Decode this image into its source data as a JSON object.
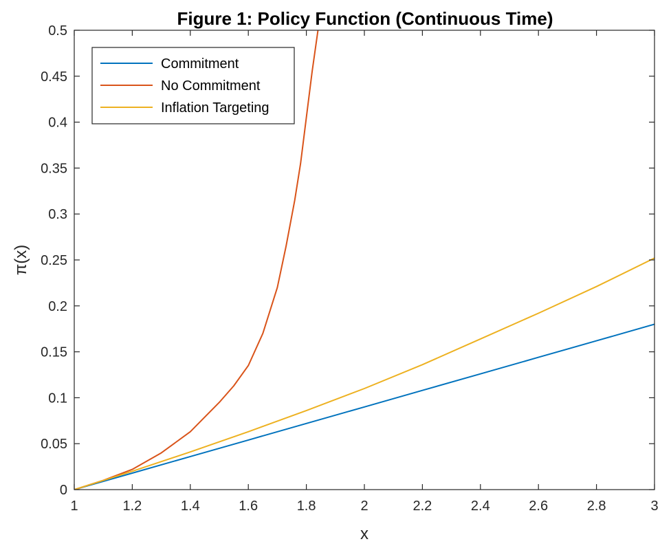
{
  "chart_data": {
    "type": "line",
    "title": "Figure 1: Policy Function (Continuous Time)",
    "xlabel": "x",
    "ylabel": "π(x)",
    "xlim": [
      1,
      3
    ],
    "ylim": [
      0,
      0.5
    ],
    "xticks": [
      1,
      1.2,
      1.4,
      1.6,
      1.8,
      2,
      2.2,
      2.4,
      2.6,
      2.8,
      3
    ],
    "xtick_labels": [
      "1",
      "1.2",
      "1.4",
      "1.6",
      "1.8",
      "2",
      "2.2",
      "2.4",
      "2.6",
      "2.8",
      "3"
    ],
    "yticks": [
      0,
      0.05,
      0.1,
      0.15,
      0.2,
      0.25,
      0.3,
      0.35,
      0.4,
      0.45,
      0.5
    ],
    "ytick_labels": [
      "0",
      "0.05",
      "0.1",
      "0.15",
      "0.2",
      "0.25",
      "0.3",
      "0.35",
      "0.4",
      "0.45",
      "0.5"
    ],
    "grid": false,
    "legend_position": "top-left",
    "series": [
      {
        "name": "Commitment",
        "color": "#0072BD",
        "x": [
          1,
          1.2,
          1.4,
          1.6,
          1.8,
          2,
          2.2,
          2.4,
          2.6,
          2.8,
          3
        ],
        "y": [
          0,
          0.018,
          0.036,
          0.054,
          0.072,
          0.09,
          0.108,
          0.126,
          0.144,
          0.162,
          0.18
        ]
      },
      {
        "name": "No Commitment",
        "color": "#D95319",
        "x": [
          1,
          1.1,
          1.2,
          1.3,
          1.4,
          1.5,
          1.55,
          1.6,
          1.65,
          1.7,
          1.73,
          1.76,
          1.78,
          1.8,
          1.82,
          1.84
        ],
        "y": [
          0,
          0.01,
          0.022,
          0.04,
          0.063,
          0.095,
          0.113,
          0.135,
          0.17,
          0.22,
          0.265,
          0.315,
          0.355,
          0.405,
          0.455,
          0.5
        ]
      },
      {
        "name": "Inflation Targeting",
        "color": "#EDB120",
        "x": [
          1,
          1.2,
          1.4,
          1.6,
          1.8,
          2,
          2.2,
          2.4,
          2.6,
          2.8,
          3
        ],
        "y": [
          0,
          0.02,
          0.041,
          0.063,
          0.086,
          0.11,
          0.136,
          0.164,
          0.192,
          0.221,
          0.252
        ]
      }
    ]
  }
}
